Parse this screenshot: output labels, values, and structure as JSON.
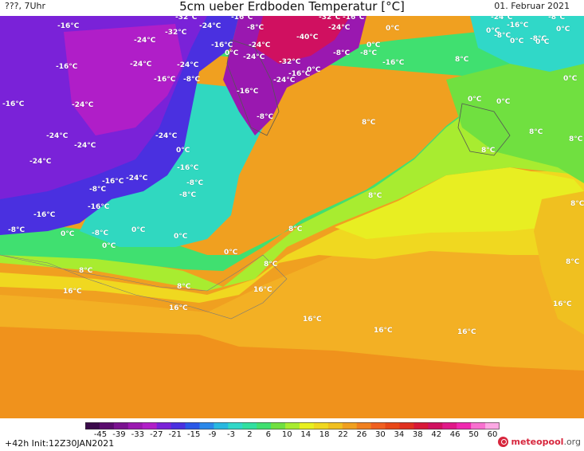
{
  "header": {
    "left_label": "???, 7Uhr",
    "title": "5cm ueber Erdboden Temperatur [°C]",
    "date": "01. Februar 2021"
  },
  "map": {
    "temperature_labels": [
      "-16°C",
      "-32°C",
      "-24°C",
      "-8°C",
      "0°C",
      "8°C",
      "16°C",
      "-40°C"
    ]
  },
  "legend": {
    "ticks": [
      "-45",
      "-39",
      "-33",
      "-27",
      "-21",
      "-15",
      "-9",
      "-3",
      "2",
      "6",
      "10",
      "14",
      "18",
      "22",
      "26",
      "30",
      "34",
      "38",
      "42",
      "46",
      "50",
      "60"
    ],
    "colors": [
      "#3a0a4a",
      "#5a0c6e",
      "#7a1290",
      "#9a18b0",
      "#b01ec8",
      "#7a22d8",
      "#4a30e0",
      "#2a58e8",
      "#2a88ea",
      "#28b8e0",
      "#30d8c8",
      "#30e0a0",
      "#40e070",
      "#70e040",
      "#a8ec30",
      "#e8f020",
      "#f0d820",
      "#f0c020",
      "#f0a020",
      "#f08020",
      "#f06020",
      "#e84818",
      "#e03020",
      "#d81838",
      "#d01060",
      "#e01888",
      "#f028b0",
      "#f870d0",
      "#fca8e4"
    ]
  },
  "footer": {
    "run_info": "+42h Init:12Z30JAN2021",
    "brand_main": "meteopool",
    "brand_tld": ".org"
  }
}
